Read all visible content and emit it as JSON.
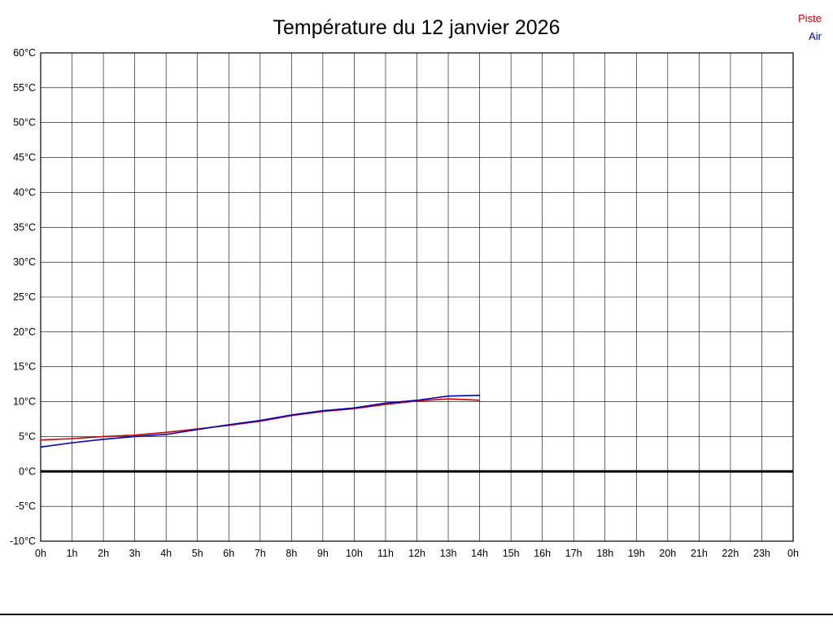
{
  "title": "Température du 12 janvier 2026",
  "legend": {
    "piste_label": "Piste",
    "air_label": "Air"
  },
  "colors": {
    "piste": "#cc0000",
    "air": "#0000bb",
    "grid": "#000000",
    "zero_line": "#000000",
    "text": "#000000"
  },
  "chart_data": {
    "type": "line",
    "title": "Température du 12 janvier 2026",
    "xlabel": "",
    "ylabel": "",
    "x_tick_labels": [
      "0h",
      "1h",
      "2h",
      "3h",
      "4h",
      "5h",
      "6h",
      "7h",
      "8h",
      "9h",
      "10h",
      "11h",
      "12h",
      "13h",
      "14h",
      "15h",
      "16h",
      "17h",
      "18h",
      "19h",
      "20h",
      "21h",
      "22h",
      "23h",
      "0h"
    ],
    "y_tick_labels": [
      "60°C",
      "55°C",
      "50°C",
      "45°C",
      "40°C",
      "35°C",
      "30°C",
      "25°C",
      "20°C",
      "15°C",
      "10°C",
      "5°C",
      "0°C",
      "-5°C",
      "-10°C"
    ],
    "y_ticks": [
      60,
      55,
      50,
      45,
      40,
      35,
      30,
      25,
      20,
      15,
      10,
      5,
      0,
      -5,
      -10
    ],
    "xlim": [
      0,
      24
    ],
    "ylim": [
      -10,
      60
    ],
    "grid": true,
    "zero_line_value": 0,
    "legend_position": "top-right",
    "x": [
      0,
      1,
      2,
      3,
      4,
      5,
      6,
      7,
      8,
      9,
      10,
      11,
      12,
      13,
      14
    ],
    "series": [
      {
        "name": "Piste",
        "color": "#cc0000",
        "values": [
          4.5,
          4.7,
          5.0,
          5.2,
          5.6,
          6.1,
          6.6,
          7.2,
          8.0,
          8.6,
          9.0,
          9.6,
          10.1,
          10.4,
          10.2
        ]
      },
      {
        "name": "Air",
        "color": "#0000bb",
        "values": [
          3.5,
          4.1,
          4.6,
          5.0,
          5.3,
          6.0,
          6.7,
          7.3,
          8.1,
          8.7,
          9.1,
          9.8,
          10.2,
          10.8,
          10.9
        ]
      }
    ]
  }
}
